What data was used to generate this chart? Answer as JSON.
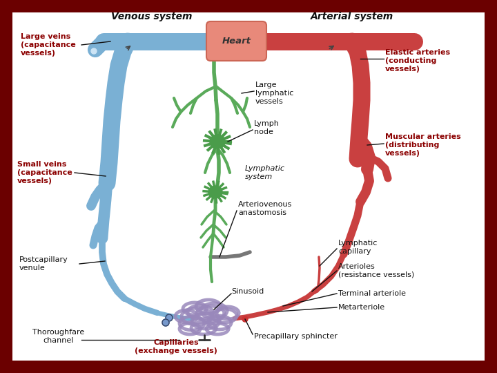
{
  "bg_outer": "#6b0000",
  "bg_inner": "#ffffff",
  "heart_color": "#e8897a",
  "heart_border": "#cc6655",
  "heart_text": "Heart",
  "venous_color": "#7ab0d4",
  "arterial_color": "#c94040",
  "lymph_color": "#5aaa5a",
  "lymph_node_color": "#4a9c4a",
  "capillary_color": "#9988bb",
  "sphincter_color": "#7799cc",
  "title_venous": "Venous system",
  "title_arterial": "Arterial system"
}
